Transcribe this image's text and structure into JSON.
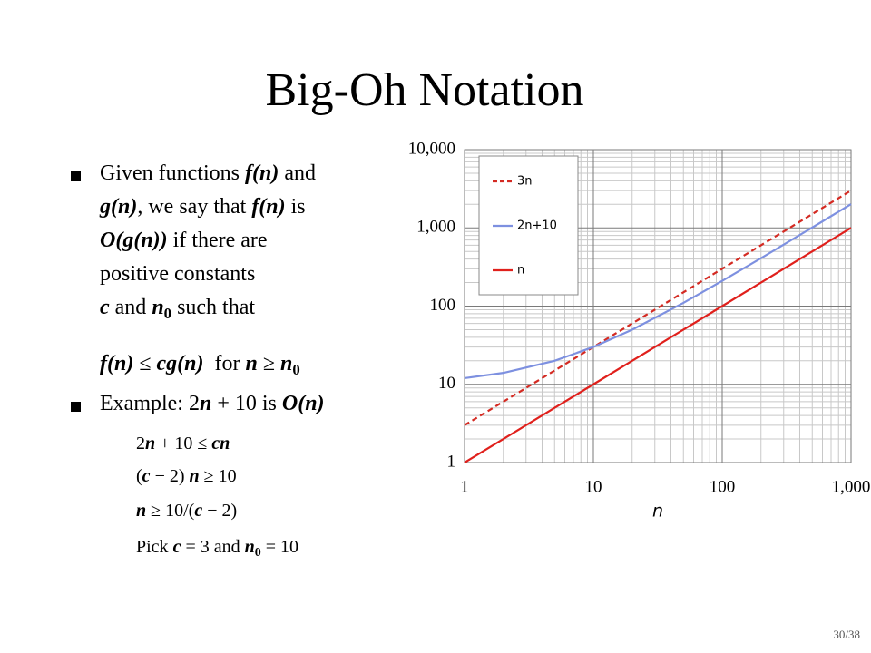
{
  "title": "Big-Oh Notation",
  "bullets": [
    {
      "lines": [
        [
          "Given functions ",
          "f(n)",
          " and"
        ],
        [
          "g(n)",
          ", we say that ",
          "f(n)",
          " is"
        ],
        [
          "O(g(n))",
          " if there are"
        ],
        [
          "positive constants"
        ],
        [
          "c",
          " and ",
          "n",
          "0",
          " such that"
        ]
      ],
      "formula": [
        "f(n)",
        " ≤ ",
        "cg(n)",
        "  for ",
        "n",
        " ≥ ",
        "n",
        "0"
      ]
    },
    {
      "lines": [
        [
          "Example: 2",
          "n",
          " + 10 is ",
          "O(n)"
        ]
      ],
      "steps": [
        [
          "2",
          "n",
          " + 10 ≤ ",
          "cn"
        ],
        [
          "(",
          "c",
          " − 2) ",
          "n",
          " ≥ 10"
        ],
        [
          "n",
          " ≥ 10/(",
          "c",
          " − 2)"
        ],
        [
          "Pick ",
          "c",
          " = 3 and ",
          "n",
          "0",
          " = 10"
        ]
      ]
    }
  ],
  "page_number": "30/38",
  "chart_data": {
    "type": "line",
    "x_label": "n",
    "log_x": true,
    "log_y": true,
    "grid": true,
    "minor_grid": true,
    "legend": "upper left",
    "x": [
      1,
      2,
      5,
      10,
      20,
      50,
      100,
      200,
      500,
      1000
    ],
    "xlim": [
      1,
      1000
    ],
    "xticks": [
      1,
      10,
      100,
      {
        "value": 1000,
        "label": "1,000"
      }
    ],
    "ylim": [
      1,
      10000
    ],
    "yticks": [
      1,
      10,
      100,
      {
        "value": 1000,
        "label": "1,000"
      },
      {
        "value": 10000,
        "label": "10,000"
      }
    ],
    "series": [
      {
        "name": "3n",
        "color": "#d42a22",
        "line_style": "dashed",
        "values": [
          3,
          6,
          15,
          30,
          60,
          150,
          300,
          600,
          1500,
          3000
        ]
      },
      {
        "name": "2n+10",
        "color": "#7d90e0",
        "line_style": "solid",
        "values": [
          12,
          14,
          20,
          30,
          50,
          110,
          210,
          410,
          1010,
          2010
        ]
      },
      {
        "name": "n",
        "color": "#e0201c",
        "line_style": "solid",
        "values": [
          1,
          2,
          5,
          10,
          20,
          50,
          100,
          200,
          500,
          1000
        ]
      }
    ]
  }
}
